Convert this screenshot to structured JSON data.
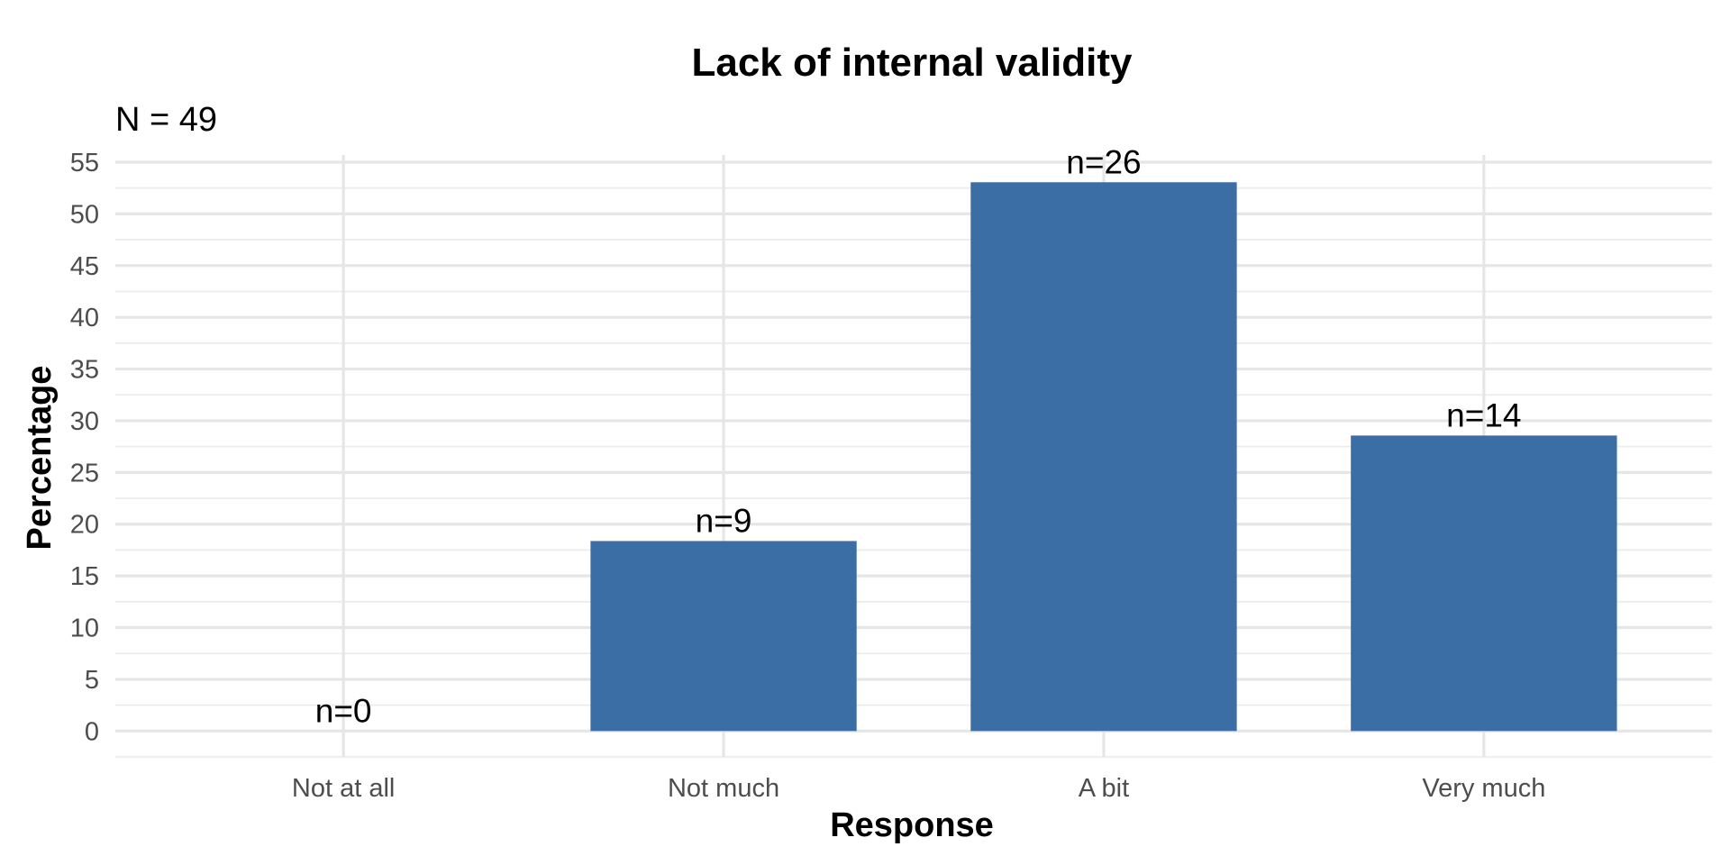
{
  "chart_data": {
    "type": "bar",
    "title": "Lack of internal validity",
    "subtitle": "N = 49",
    "xlabel": "Response",
    "ylabel": "Percentage",
    "categories": [
      "Not at all",
      "Not much",
      "A bit",
      "Very much"
    ],
    "values": [
      0,
      18.37,
      53.06,
      28.57
    ],
    "data_labels": [
      "n=0",
      "n=9",
      "n=26",
      "n=14"
    ],
    "y_ticks": [
      "0",
      "5",
      "10",
      "15",
      "20",
      "25",
      "30",
      "35",
      "40",
      "45",
      "50",
      "55"
    ],
    "ylim": [
      -2.5,
      55
    ],
    "grid": true,
    "legend": "none",
    "bar_color": "#3a6ea5"
  }
}
